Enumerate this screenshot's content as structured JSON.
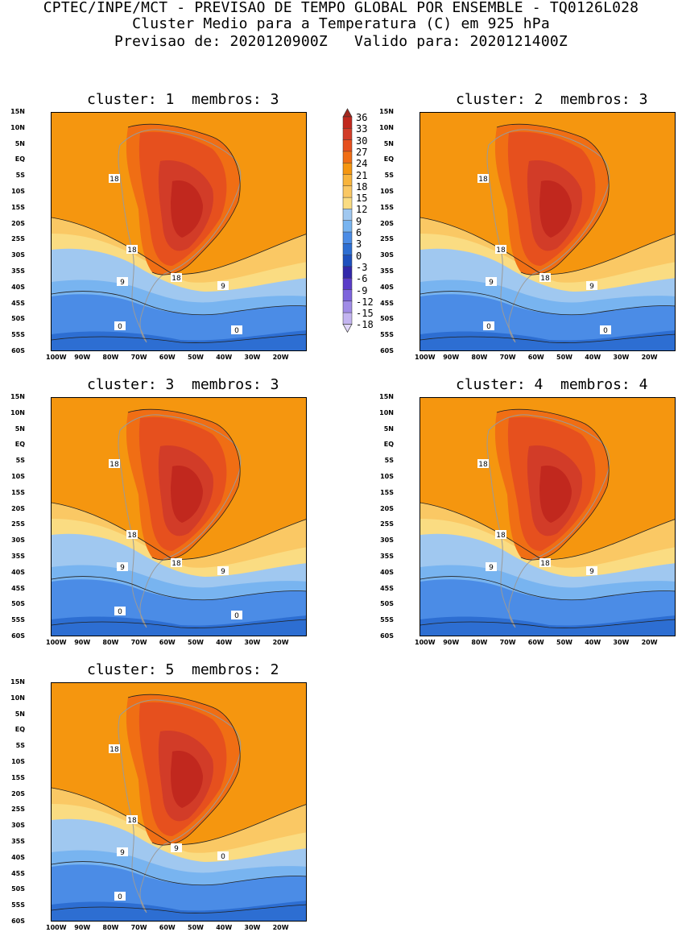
{
  "header": {
    "line1": "CPTEC/INPE/MCT - PREVISAO DE TEMPO GLOBAL POR ENSEMBLE - TQ0126L028",
    "line2": "Cluster Medio para a Temperatura (C) em 925 hPa",
    "line3": "Previsao de: 2020120900Z   Valido para: 2020121400Z"
  },
  "panels": [
    {
      "title": "cluster: 1  membros: 3",
      "contour_labels": [
        "18",
        "18",
        "18",
        "9",
        "9",
        "0",
        "0"
      ]
    },
    {
      "title": "cluster: 2  membros: 3",
      "contour_labels": [
        "18",
        "18",
        "18",
        "9",
        "9",
        "0",
        "0"
      ]
    },
    {
      "title": "cluster: 3  membros: 3",
      "contour_labels": [
        "18",
        "18",
        "18",
        "9",
        "9",
        "0",
        "0"
      ]
    },
    {
      "title": "cluster: 4  membros: 4",
      "contour_labels": [
        "18",
        "18",
        "18",
        "9",
        "9"
      ]
    },
    {
      "title": "cluster: 5  membros: 2",
      "contour_labels": [
        "18",
        "18",
        "9",
        "9",
        "0",
        "0"
      ]
    }
  ],
  "lat_ticks": [
    "15N",
    "10N",
    "5N",
    "EQ",
    "5S",
    "10S",
    "15S",
    "20S",
    "25S",
    "30S",
    "35S",
    "40S",
    "45S",
    "50S",
    "55S",
    "60S"
  ],
  "lon_ticks": [
    "100W",
    "90W",
    "80W",
    "70W",
    "60W",
    "50W",
    "40W",
    "30W",
    "20W"
  ],
  "colorbar": {
    "labels": [
      "36",
      "33",
      "30",
      "27",
      "24",
      "21",
      "18",
      "15",
      "12",
      "9",
      "6",
      "3",
      "0",
      "-3",
      "-6",
      "-9",
      "-12",
      "-15",
      "-18"
    ],
    "colors": [
      "#a3281e",
      "#c1281e",
      "#d23c28",
      "#e6501e",
      "#f06e14",
      "#f5960f",
      "#f8b43c",
      "#fac864",
      "#fadc82",
      "#a0c8f0",
      "#78b4f0",
      "#4b8ce6",
      "#2d6ed2",
      "#1e50be",
      "#3228aa",
      "#5a3cc8",
      "#7d64dc",
      "#a08ce6",
      "#c3b4f0",
      "#e1d7fa"
    ]
  }
}
